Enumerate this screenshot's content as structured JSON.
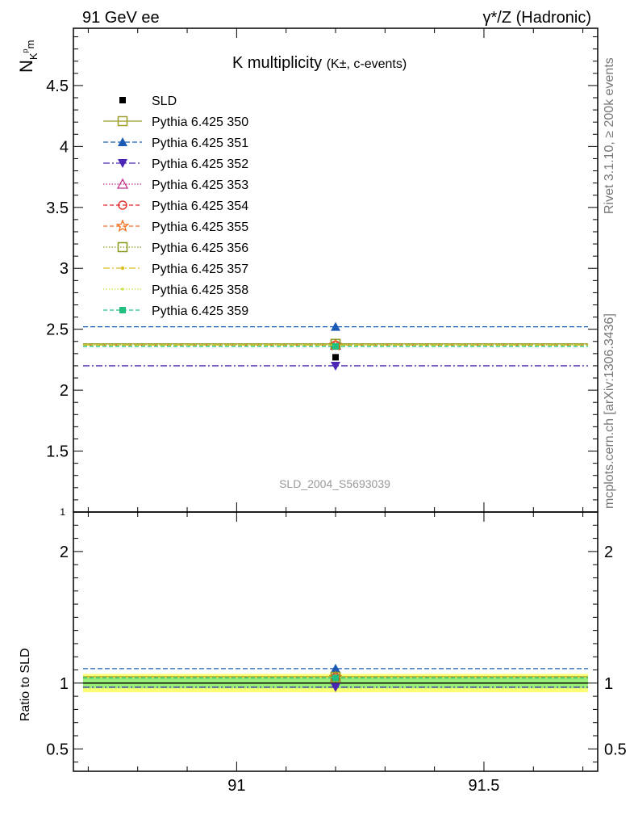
{
  "header": {
    "left": "91 GeV ee",
    "right": "γ*/Z (Hadronic)"
  },
  "side_labels": {
    "rivet": "Rivet 3.1.10, ≥ 200k events",
    "mcplots": "mcplots.cern.ch [arXiv:1306.3436]"
  },
  "chart_data": [
    {
      "type": "line",
      "title_main": "K multiplicity",
      "title_sub": "(K±, c-events)",
      "ylabel_main": "N",
      "ylabel_sub": "K",
      "ylabel_sup": "p",
      "ylabel_subsub": "m",
      "watermark": "SLD_2004_S5693039",
      "xlim": [
        90.67,
        91.73
      ],
      "ylim": [
        1.0,
        4.97
      ],
      "xticks": [
        91,
        91.5
      ],
      "xtick_labels": [
        "91",
        "91.5"
      ],
      "yticks": [
        1.5,
        2,
        2.5,
        3,
        3.5,
        4,
        4.5
      ],
      "ytick_labels": [
        "1.5",
        "2",
        "2.5",
        "3",
        "3.5",
        "4",
        "4.5"
      ],
      "ytick_bottom_label": "1",
      "data": {
        "name": "SLD",
        "x": 91.2,
        "y": 2.27,
        "color": "#000000"
      },
      "series": [
        {
          "name": "Pythia 6.425 350",
          "value": 2.38,
          "color": "#9b9b26",
          "dash": "solid",
          "marker": "square-open"
        },
        {
          "name": "Pythia 6.425 351",
          "value": 2.52,
          "color": "#1a5ab4",
          "dash": "6,3",
          "marker": "triangle-up"
        },
        {
          "name": "Pythia 6.425 352",
          "value": 2.2,
          "color": "#4b26b4",
          "dash": "8,3,2,3",
          "marker": "triangle-down"
        },
        {
          "name": "Pythia 6.425 353",
          "value": 2.37,
          "color": "#c0308a",
          "dash": "1.5,2",
          "marker": "triangle-up-open"
        },
        {
          "name": "Pythia 6.425 354",
          "value": 2.37,
          "color": "#e02020",
          "dash": "5,3",
          "marker": "circle-open"
        },
        {
          "name": "Pythia 6.425 355",
          "value": 2.37,
          "color": "#f07020",
          "dash": "5,3",
          "marker": "star-open"
        },
        {
          "name": "Pythia 6.425 356",
          "value": 2.38,
          "color": "#8a9a20",
          "dash": "1.5,2",
          "marker": "square-open"
        },
        {
          "name": "Pythia 6.425 357",
          "value": 2.37,
          "color": "#d8c020",
          "dash": "8,3,2,3",
          "marker": "dot"
        },
        {
          "name": "Pythia 6.425 358",
          "value": 2.37,
          "color": "#c8e040",
          "dash": "1.5,2",
          "marker": "dot-small"
        },
        {
          "name": "Pythia 6.425 359",
          "value": 2.36,
          "color": "#20c080",
          "dash": "5,3",
          "marker": "square"
        }
      ]
    },
    {
      "type": "line",
      "ylabel": "Ratio to SLD",
      "xlim": [
        90.67,
        91.73
      ],
      "ylim": [
        0.33,
        2.3
      ],
      "yticks": [
        0.5,
        1,
        2
      ],
      "ytick_labels": [
        "0.5",
        "1",
        "2"
      ],
      "xticks": [
        91,
        91.5
      ],
      "band_inner": [
        0.96,
        1.04
      ],
      "band_outer": [
        0.93,
        1.07
      ],
      "band_inner_color": "#99ee77",
      "band_outer_color": "#ffff77",
      "ratios": [
        1.048,
        1.11,
        0.969,
        1.044,
        1.044,
        1.044,
        1.048,
        1.044,
        1.044,
        1.04
      ]
    }
  ]
}
